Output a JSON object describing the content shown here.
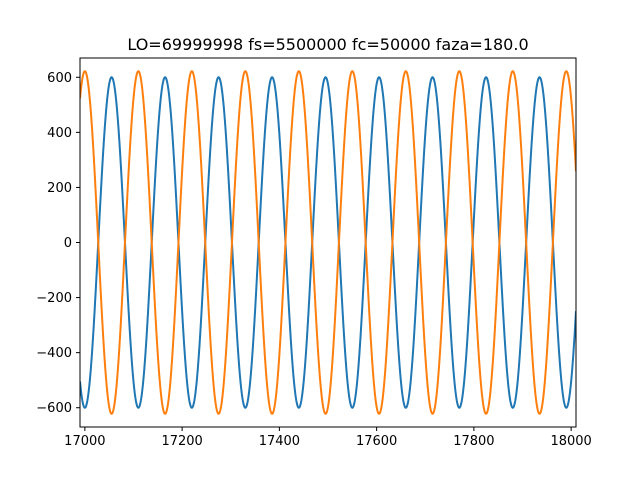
{
  "chart_data": {
    "type": "line",
    "title": "LO=69999998 fs=5500000 fc=50000 faza=180.0",
    "xlabel": "",
    "ylabel": "",
    "xlim": [
      16990,
      18010
    ],
    "ylim": [
      -670,
      670
    ],
    "x_ticks": [
      17000,
      17200,
      17400,
      17600,
      17800,
      18000
    ],
    "x_tick_labels": [
      "17000",
      "17200",
      "17400",
      "17600",
      "17800",
      "18000"
    ],
    "y_ticks": [
      -600,
      -400,
      -200,
      0,
      200,
      400,
      600
    ],
    "y_tick_labels": [
      "−600",
      "−400",
      "−200",
      "0",
      "200",
      "400",
      "600"
    ],
    "grid": false,
    "x_range": [
      16990,
      18010
    ],
    "sample_step": 1,
    "series": [
      {
        "color": "#1f77b4",
        "amplitude": 600,
        "period": 110,
        "phase_deg": -90,
        "x0": 17000
      },
      {
        "color": "#ff7f0e",
        "amplitude": 622,
        "period": 110,
        "phase_deg": 90,
        "x0": 17000
      }
    ]
  }
}
